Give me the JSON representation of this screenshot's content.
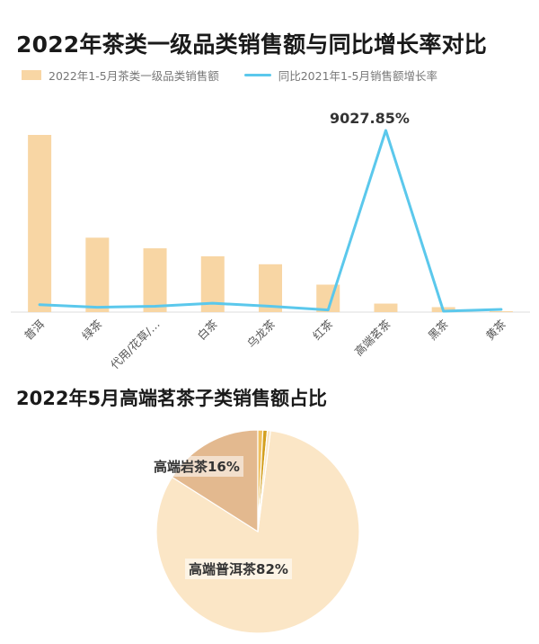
{
  "title_bar": "2022年茶类一级品类销售额与同比增长率对比",
  "title_pie": "2022年5月高端茗茶子类销售额占比",
  "colors": {
    "bar": "#f8d6a4",
    "line": "#5bc8ec",
    "axis": "#dddddd",
    "pie_main": "#fbe6c6",
    "pie_second": "#e3b98f",
    "pie_small1": "#f0c060",
    "pie_small2": "#d4a020",
    "pie_small3": "#fbe6c6"
  },
  "chart_data": [
    {
      "type": "bar",
      "categories": [
        "普洱",
        "绿茶",
        "代用/花草/…",
        "白茶",
        "乌龙茶",
        "红茶",
        "高端茗茶",
        "黑茶",
        "黄茶"
      ],
      "series": [
        {
          "name": "2022年1-5月茶类一级品类销售额",
          "kind": "bar",
          "values": [
            100,
            42,
            36,
            31.5,
            27,
            15.5,
            4.8,
            2.8,
            0.5
          ]
        },
        {
          "name": "同比2021年1-5月销售额增长率",
          "kind": "line",
          "values": [
            280,
            150,
            200,
            350,
            200,
            10,
            9027.85,
            -50,
            40
          ]
        }
      ],
      "annotations": [
        {
          "category": "高端茗茶",
          "series": 1,
          "text": "9027.85%"
        }
      ]
    },
    {
      "type": "pie",
      "title": "2022年5月高端茗茶子类销售额占比",
      "slices": [
        {
          "label": "高端普洱茶",
          "value": 82,
          "text": "高端普洱茶82%"
        },
        {
          "label": "高端岩茶",
          "value": 16,
          "text": "高端岩茶16%"
        },
        {
          "label": "",
          "value": 0.8
        },
        {
          "label": "",
          "value": 0.7
        },
        {
          "label": "",
          "value": 0.5
        }
      ]
    }
  ]
}
